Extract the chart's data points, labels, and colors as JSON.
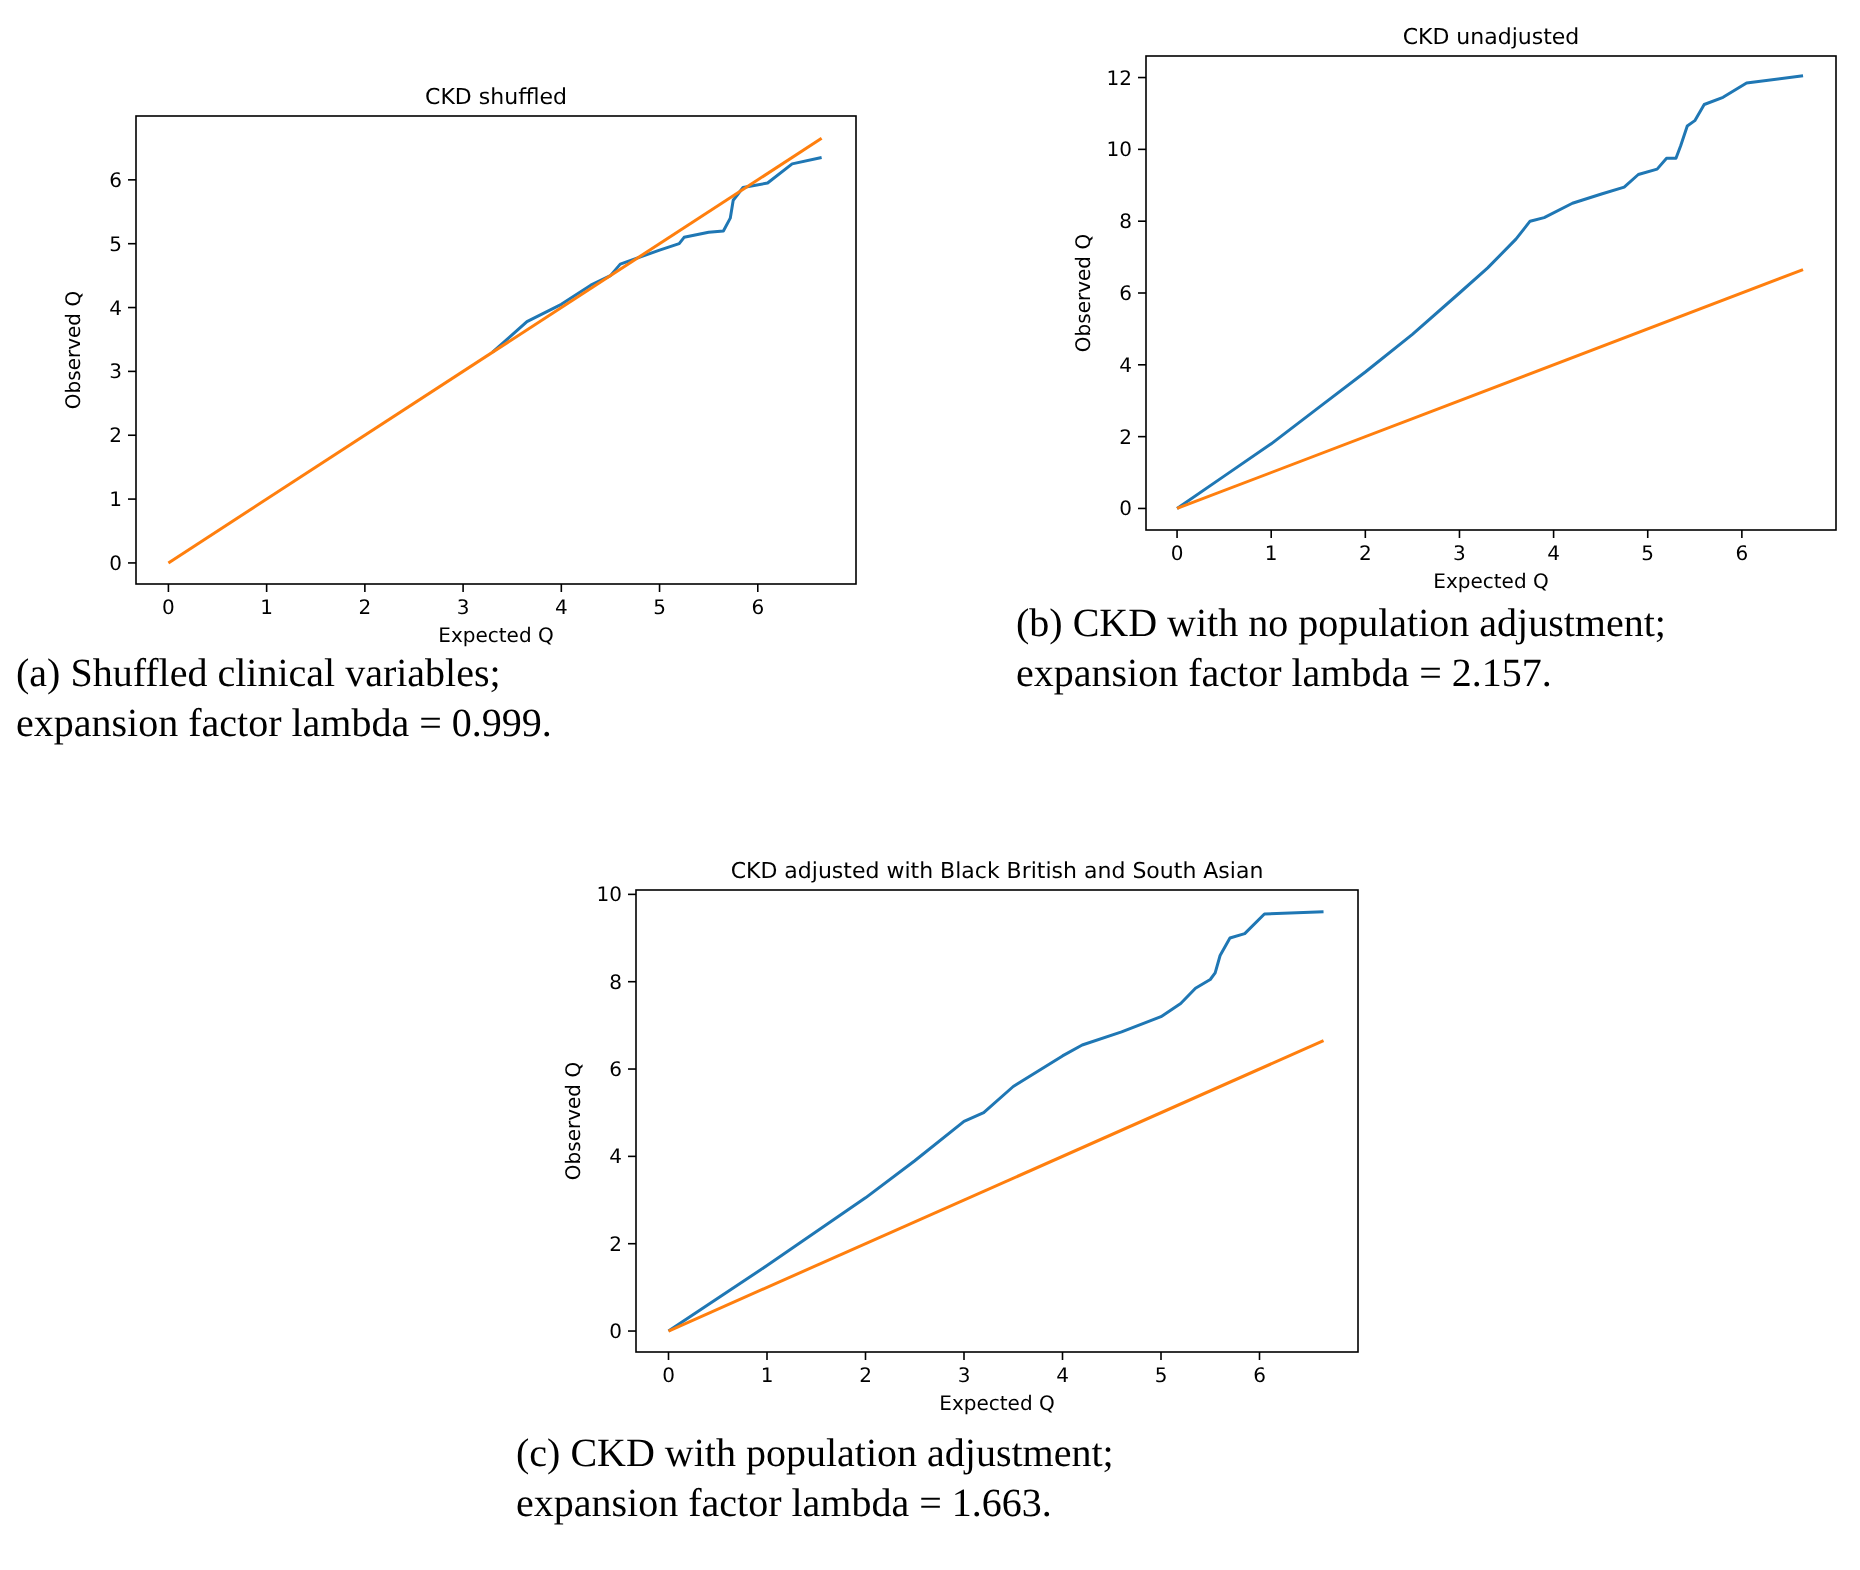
{
  "chart_data": [
    {
      "type": "line",
      "title": "CKD shuffled",
      "xlabel": "Expected Q",
      "ylabel": "Observed Q",
      "xlim": [
        -0.33,
        7.0
      ],
      "ylim": [
        -0.33,
        7.0
      ],
      "xticks": [
        0,
        1,
        2,
        3,
        4,
        5,
        6
      ],
      "yticks": [
        0,
        1,
        2,
        3,
        4,
        5,
        6
      ],
      "grid": false,
      "annotations": [
        "(a) Shuffled clinical variables; expansion factor lambda = 0.999."
      ],
      "series": [
        {
          "color": "#1f77b4",
          "x": [
            3.3,
            3.65,
            4,
            4.3,
            4.5,
            4.6,
            5,
            5.2,
            5.25,
            5.5,
            5.65,
            5.72,
            5.75,
            5.85,
            6.1,
            6.35,
            6.65
          ],
          "values": [
            3.3,
            3.78,
            4.05,
            4.35,
            4.5,
            4.68,
            4.9,
            5.0,
            5.1,
            5.18,
            5.2,
            5.4,
            5.68,
            5.88,
            5.95,
            6.25,
            6.35
          ]
        },
        {
          "color": "#ff7f0e",
          "x": [
            0,
            6.65
          ],
          "values": [
            0,
            6.65
          ]
        }
      ]
    },
    {
      "type": "line",
      "title": "CKD unadjusted",
      "xlabel": "Expected Q",
      "ylabel": "Observed Q",
      "xlim": [
        -0.33,
        7.0
      ],
      "ylim": [
        -0.6,
        12.6
      ],
      "xticks": [
        0,
        1,
        2,
        3,
        4,
        5,
        6
      ],
      "yticks": [
        0,
        2,
        4,
        6,
        8,
        10,
        12
      ],
      "grid": false,
      "annotations": [
        "(b) CKD with no population adjustment; expansion factor lambda = 2.157."
      ],
      "series": [
        {
          "color": "#1f77b4",
          "x": [
            0,
            0.5,
            1,
            1.5,
            2,
            2.5,
            3,
            3.3,
            3.6,
            3.75,
            3.9,
            4.2,
            4.5,
            4.75,
            4.9,
            5.1,
            5.2,
            5.3,
            5.35,
            5.42,
            5.5,
            5.6,
            5.8,
            6.05,
            6.65
          ],
          "values": [
            0,
            0.9,
            1.8,
            2.8,
            3.8,
            4.85,
            6.0,
            6.7,
            7.5,
            8.0,
            8.1,
            8.5,
            8.75,
            8.95,
            9.3,
            9.45,
            9.75,
            9.75,
            10.1,
            10.65,
            10.8,
            11.25,
            11.45,
            11.85,
            12.05
          ]
        },
        {
          "color": "#ff7f0e",
          "x": [
            0,
            6.65
          ],
          "values": [
            0,
            6.65
          ]
        }
      ]
    },
    {
      "type": "line",
      "title": "CKD adjusted with Black British and South Asian",
      "xlabel": "Expected Q",
      "ylabel": "Observed Q",
      "xlim": [
        -0.33,
        7.0
      ],
      "ylim": [
        -0.48,
        10.1
      ],
      "xticks": [
        0,
        1,
        2,
        3,
        4,
        5,
        6
      ],
      "yticks": [
        0,
        2,
        4,
        6,
        8,
        10
      ],
      "grid": false,
      "annotations": [
        "(c) CKD with population adjustment; expansion factor lambda = 1.663."
      ],
      "series": [
        {
          "color": "#1f77b4",
          "x": [
            0,
            1,
            2,
            2.5,
            3,
            3.2,
            3.5,
            4,
            4.2,
            4.6,
            5,
            5.2,
            5.35,
            5.5,
            5.55,
            5.6,
            5.7,
            5.85,
            6.05,
            6.65
          ],
          "values": [
            0,
            1.5,
            3.05,
            3.9,
            4.8,
            5.0,
            5.6,
            6.3,
            6.55,
            6.85,
            7.2,
            7.5,
            7.85,
            8.05,
            8.2,
            8.6,
            9.0,
            9.1,
            9.55,
            9.6
          ]
        },
        {
          "color": "#ff7f0e",
          "x": [
            0,
            6.65
          ],
          "values": [
            0,
            6.65
          ]
        }
      ]
    }
  ]
}
